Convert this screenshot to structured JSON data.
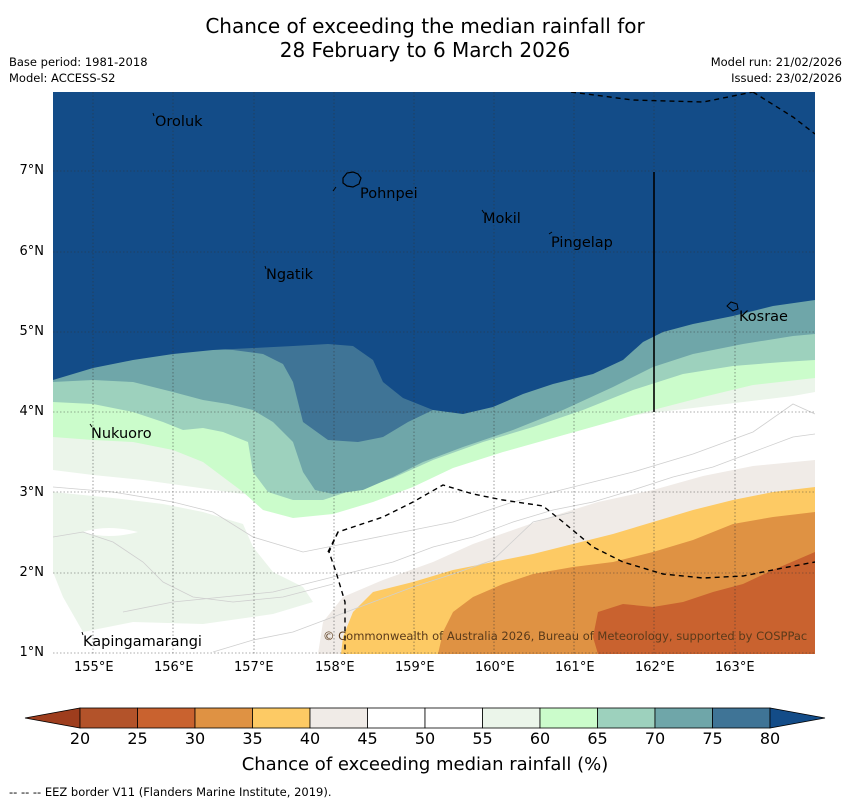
{
  "header": {
    "title_line1": "Chance of exceeding the median rainfall for",
    "title_line2": "28 February to 6 March 2026",
    "base_period": "Base period: 1981-2018",
    "model": "Model: ACCESS-S2",
    "model_run": "Model run: 21/02/2026",
    "issued": "Issued: 23/02/2026"
  },
  "map": {
    "lon_ticks": [
      "155°E",
      "156°E",
      "157°E",
      "158°E",
      "159°E",
      "160°E",
      "161°E",
      "162°E",
      "163°E"
    ],
    "lat_ticks": [
      "7°N",
      "6°N",
      "5°N",
      "4°N",
      "3°N",
      "2°N",
      "1°N"
    ],
    "places": {
      "oroluk": "Oroluk",
      "pohnpei": "Pohnpei",
      "mokil": "Mokil",
      "pingelap": "Pingelap",
      "ngatik": "Ngatik",
      "kosrae": "Kosrae",
      "nukuoro": "Nukuoro",
      "kapingamarangi": "Kapingamarangi"
    },
    "copyright": "© Commonwealth of Australia 2026, Bureau of Meteorology, supported by COSPPac"
  },
  "colorbar": {
    "title": "Chance of exceeding median rainfall (%)",
    "tick_labels": [
      "20",
      "25",
      "30",
      "35",
      "40",
      "45",
      "50",
      "55",
      "60",
      "65",
      "70",
      "75",
      "80"
    ],
    "colors": {
      "below20": "#9e3d1d",
      "c20_25": "#b3532a",
      "c25_30": "#c9622f",
      "c30_35": "#df9243",
      "c35_40": "#fdca64",
      "c40_45": "#f0ebe7",
      "c45_50": "#ffffff",
      "c50_55": "#ffffff",
      "c55_60": "#ebf5ea",
      "c60_65": "#cbfccb",
      "c65_70": "#9dd1bd",
      "c70_75": "#6fa6a9",
      "c75_80": "#3f7496",
      "above80": "#134c88"
    }
  },
  "footnote": "--  --  -- EEZ border V11 (Flanders Marine Institute, 2019)."
}
